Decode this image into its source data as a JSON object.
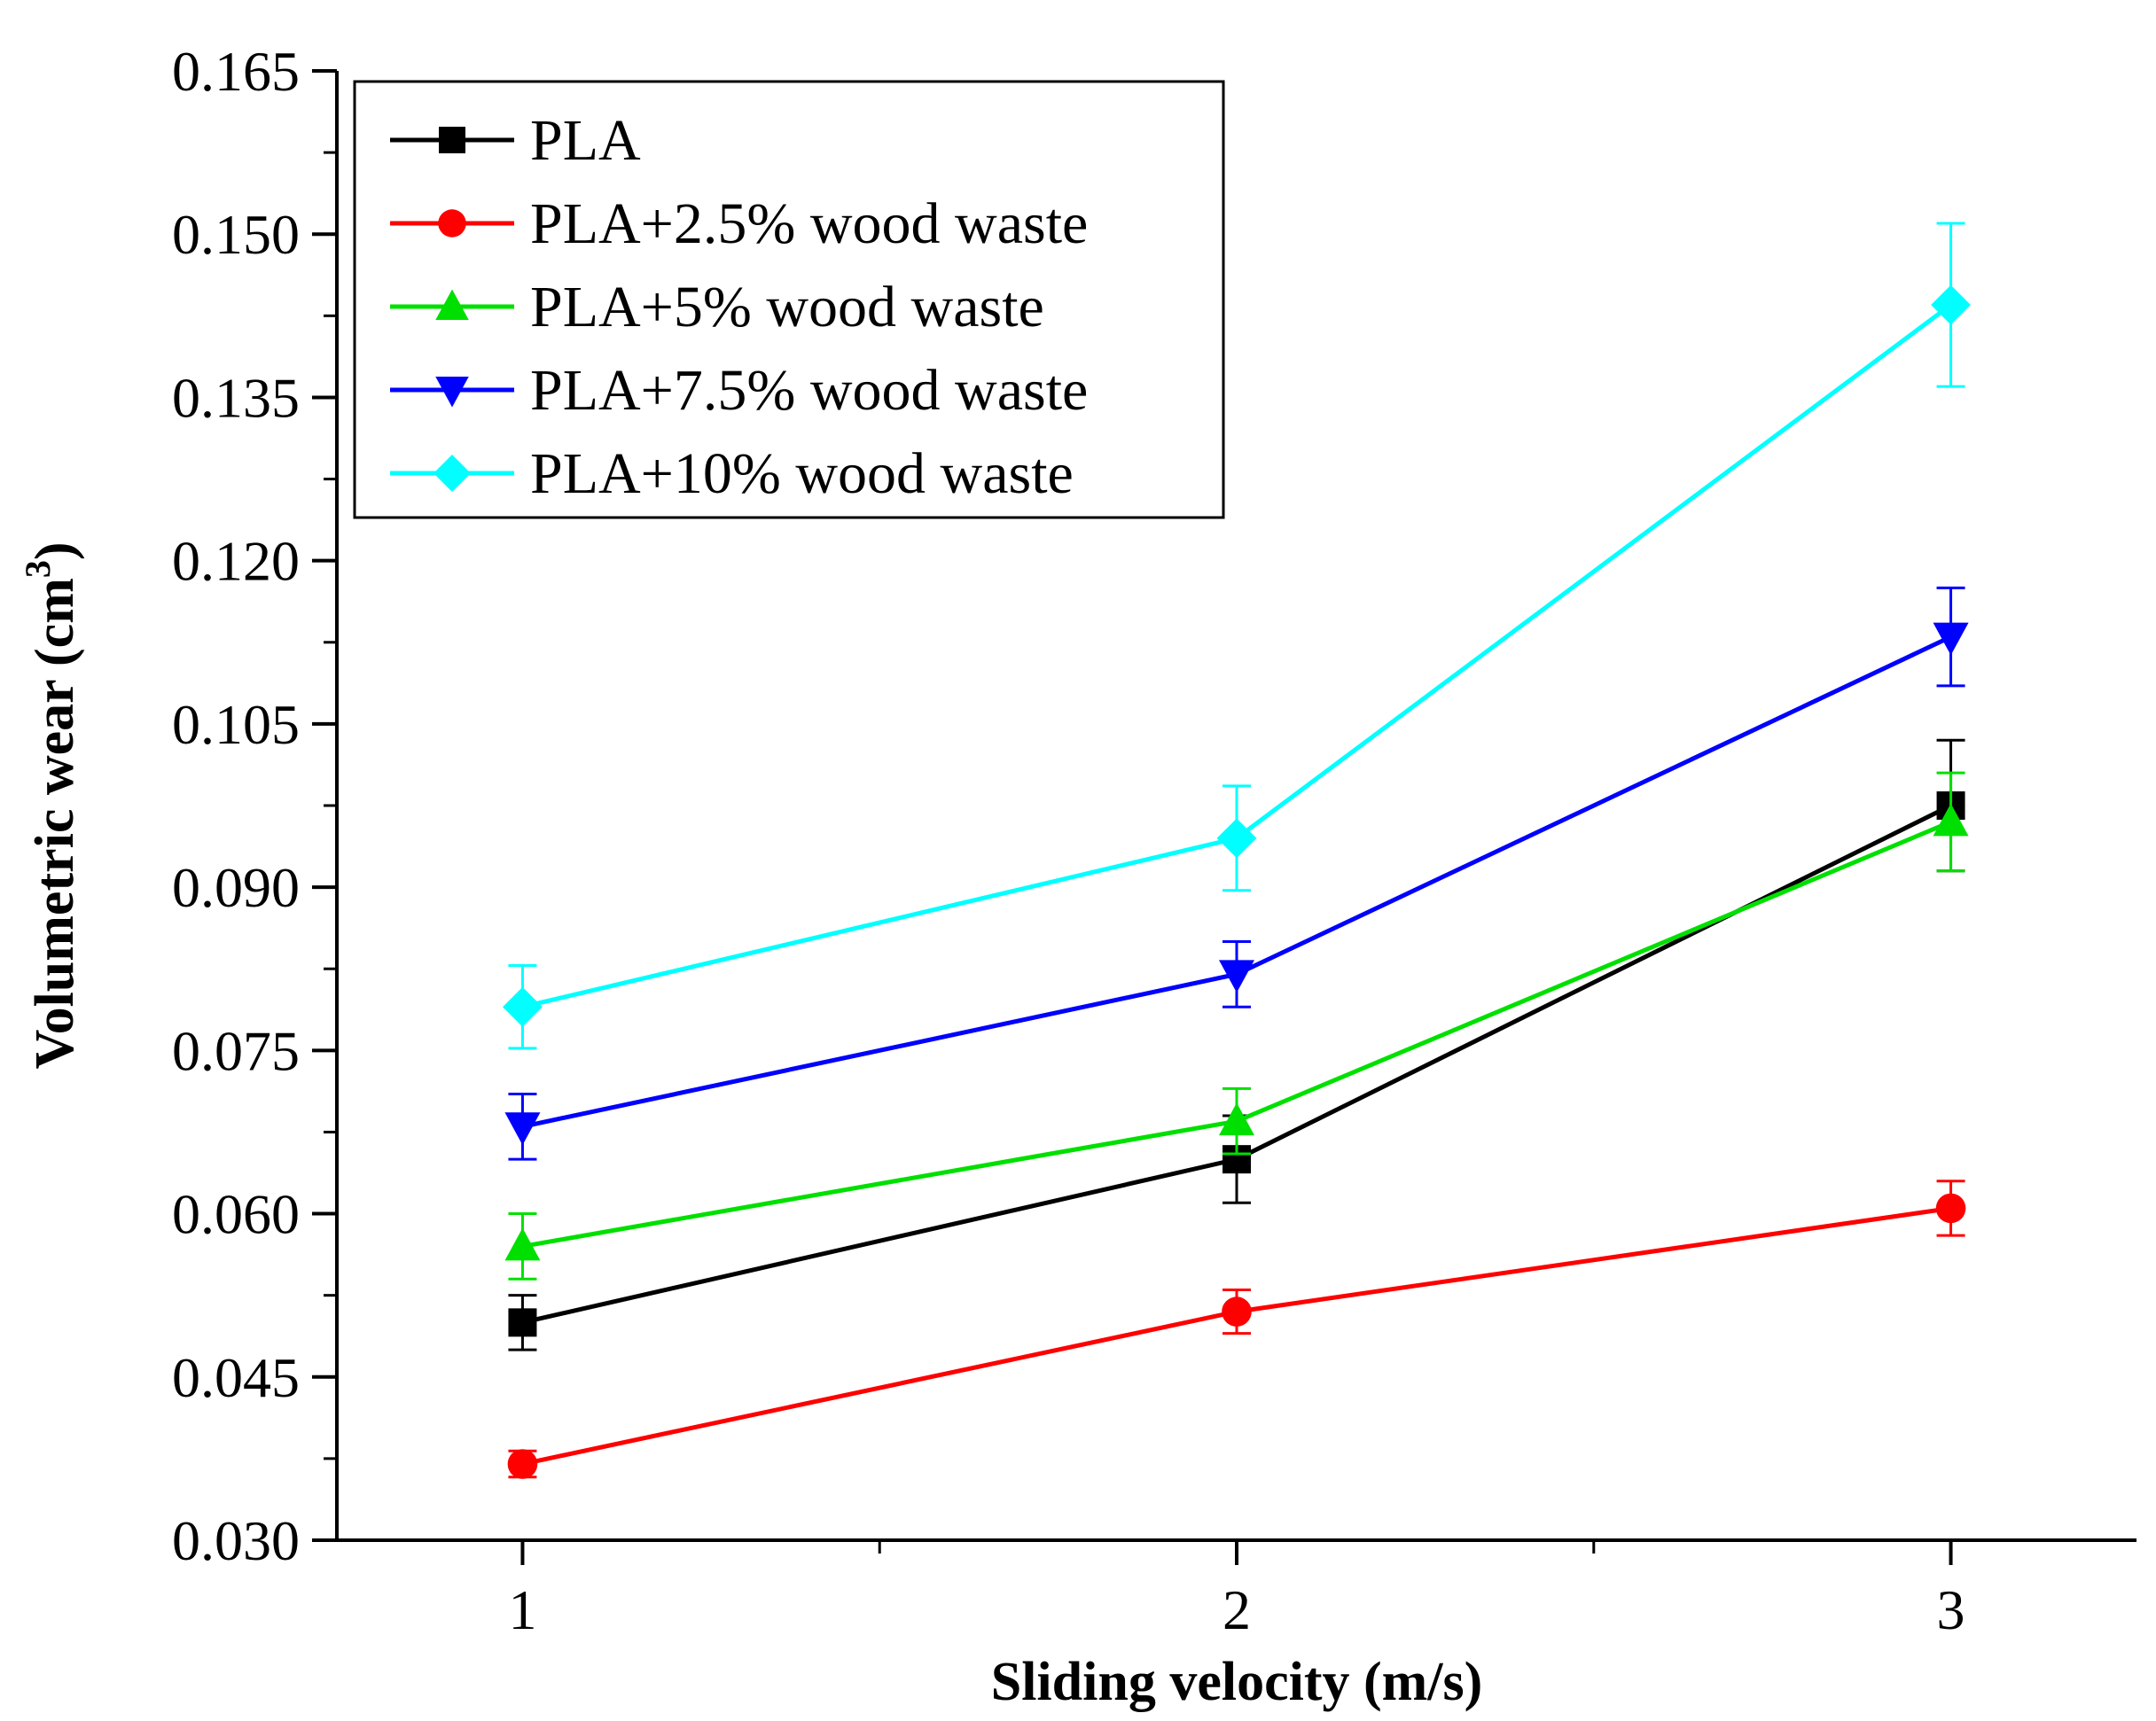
{
  "chart_data": {
    "type": "line",
    "title": "",
    "xlabel": "Sliding velocity (m/s)",
    "ylabel": "Volumetric wear (cm",
    "ylabel_superscript": "3",
    "ylabel_close": ")",
    "x": [
      1,
      2,
      3
    ],
    "xlim": [
      0.74,
      3.26
    ],
    "ylim": [
      0.03,
      0.165
    ],
    "xticks": [
      1,
      2,
      3
    ],
    "xtick_labels": [
      "1",
      "2",
      "3"
    ],
    "yticks": [
      0.03,
      0.045,
      0.06,
      0.075,
      0.09,
      0.105,
      0.12,
      0.135,
      0.15,
      0.165
    ],
    "ytick_labels": [
      "0.030",
      "0.045",
      "0.060",
      "0.075",
      "0.090",
      "0.105",
      "0.120",
      "0.135",
      "0.150",
      "0.165"
    ],
    "legend_position": "top-left",
    "grid": false,
    "series": [
      {
        "name": "PLA",
        "color": "#000000",
        "marker": "square",
        "values": [
          0.05,
          0.065,
          0.0975
        ],
        "errors": [
          0.0025,
          0.004,
          0.006
        ]
      },
      {
        "name": "PLA+2.5% wood waste",
        "color": "#ff0000",
        "marker": "circle",
        "values": [
          0.037,
          0.051,
          0.0605
        ],
        "errors": [
          0.0012,
          0.002,
          0.0025
        ]
      },
      {
        "name": "PLA+5% wood waste",
        "color": "#00e000",
        "marker": "triangle-up",
        "values": [
          0.057,
          0.0685,
          0.096
        ],
        "errors": [
          0.003,
          0.003,
          0.0045
        ]
      },
      {
        "name": "PLA+7.5% wood waste",
        "color": "#0000ff",
        "marker": "triangle-down",
        "values": [
          0.068,
          0.082,
          0.113
        ],
        "errors": [
          0.003,
          0.003,
          0.0045
        ]
      },
      {
        "name": "PLA+10% wood waste",
        "color": "#00ffff",
        "marker": "diamond",
        "values": [
          0.079,
          0.0945,
          0.1435
        ],
        "errors": [
          0.0038,
          0.0048,
          0.0075
        ]
      }
    ]
  }
}
